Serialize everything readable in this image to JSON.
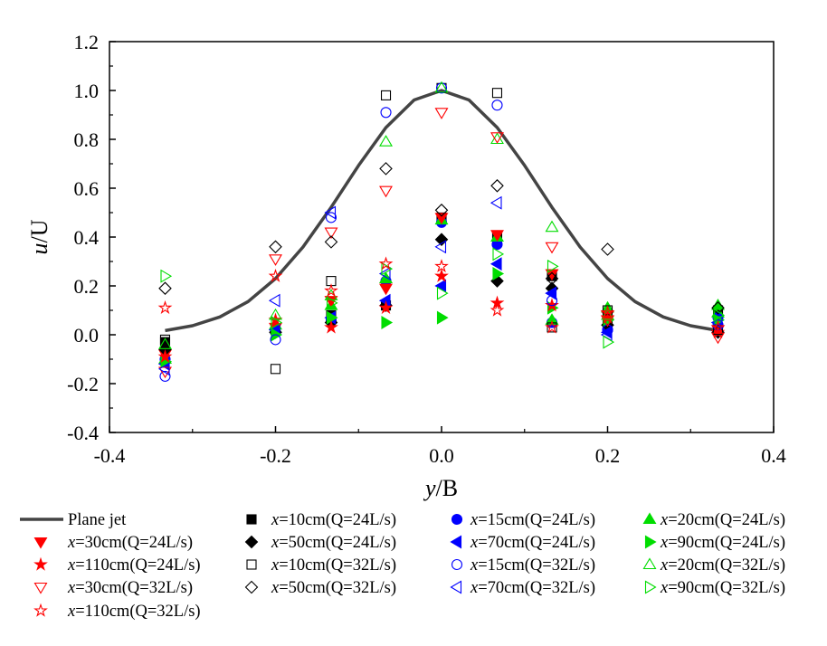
{
  "chart_data": {
    "type": "scatter",
    "xlabel": {
      "var": "y",
      "rest": "/B"
    },
    "ylabel": {
      "var": "u",
      "rest": "/U"
    },
    "xlim": [
      -0.4,
      0.4
    ],
    "ylim": [
      -0.4,
      1.2
    ],
    "xticks": [
      "-0.4",
      "-0.2",
      "0.0",
      "0.2",
      "0.4"
    ],
    "xtick_values": [
      -0.4,
      -0.2,
      0.0,
      0.2,
      0.4
    ],
    "yticks": [
      "-0.4",
      "-0.2",
      "0.0",
      "0.2",
      "0.4",
      "0.6",
      "0.8",
      "1.0",
      "1.2"
    ],
    "ytick_values": [
      -0.4,
      -0.2,
      0.0,
      0.2,
      0.4,
      0.6,
      0.8,
      1.0,
      1.2
    ],
    "grid": false,
    "legend_placement": "bottom",
    "x": [
      -0.333,
      -0.2,
      -0.133,
      -0.067,
      0.0,
      0.067,
      0.133,
      0.2,
      0.333
    ],
    "curve": {
      "name": "Plane jet",
      "color": "#444444",
      "x": [
        -0.333,
        -0.3,
        -0.267,
        -0.233,
        -0.2,
        -0.167,
        -0.133,
        -0.1,
        -0.067,
        -0.033,
        0,
        0.033,
        0.067,
        0.1,
        0.133,
        0.167,
        0.2,
        0.233,
        0.267,
        0.3,
        0.333
      ],
      "y": [
        0.017,
        0.037,
        0.073,
        0.136,
        0.23,
        0.359,
        0.522,
        0.693,
        0.848,
        0.961,
        1.0,
        0.961,
        0.848,
        0.693,
        0.522,
        0.359,
        0.23,
        0.136,
        0.073,
        0.037,
        0.017
      ]
    },
    "series": [
      {
        "name": "x=10cm(Q=24L/s)",
        "marker": "square",
        "filled": true,
        "color": "#000000",
        "values": [
          -0.03,
          0.02,
          0.08,
          0.12,
          0.48,
          0.4,
          0.24,
          0.04,
          0.1
        ]
      },
      {
        "name": "x=15cm(Q=24L/s)",
        "marker": "circle",
        "filled": true,
        "color": "#0000ff",
        "values": [
          -0.1,
          0.01,
          0.06,
          0.22,
          0.46,
          0.37,
          0.05,
          0.02,
          0.07
        ]
      },
      {
        "name": "x=20cm(Q=24L/s)",
        "marker": "triangle-up",
        "filled": true,
        "color": "#00dd00",
        "values": [
          -0.1,
          0.04,
          0.12,
          0.23,
          0.47,
          0.4,
          0.06,
          0.11,
          0.12
        ]
      },
      {
        "name": "x=30cm(Q=24L/s)",
        "marker": "triangle-down",
        "filled": true,
        "color": "#ff0000",
        "values": [
          -0.08,
          0.03,
          0.14,
          0.19,
          0.48,
          0.41,
          0.25,
          0.08,
          0.02
        ]
      },
      {
        "name": "x=50cm(Q=24L/s)",
        "marker": "diamond",
        "filled": true,
        "color": "#000000",
        "values": [
          -0.06,
          0.01,
          0.05,
          0.12,
          0.39,
          0.22,
          0.19,
          0.04,
          0.01
        ]
      },
      {
        "name": "x=70cm(Q=24L/s)",
        "marker": "triangle-left",
        "filled": true,
        "color": "#0000ff",
        "values": [
          -0.12,
          0.02,
          0.07,
          0.14,
          0.2,
          0.29,
          0.17,
          0.01,
          0.05
        ]
      },
      {
        "name": "x=90cm(Q=24L/s)",
        "marker": "triangle-right",
        "filled": true,
        "color": "#00dd00",
        "values": [
          -0.11,
          0.0,
          0.07,
          0.05,
          0.07,
          0.25,
          0.11,
          0.06,
          0.06
        ]
      },
      {
        "name": "x=110cm(Q=24L/s)",
        "marker": "star",
        "filled": true,
        "color": "#ff0000",
        "values": [
          -0.09,
          0.06,
          0.03,
          0.11,
          0.24,
          0.13,
          0.12,
          0.07,
          0.01
        ]
      },
      {
        "name": "x=10cm(Q=32L/s)",
        "marker": "square",
        "filled": false,
        "color": "#000000",
        "values": [
          -0.02,
          -0.14,
          0.22,
          0.98,
          1.01,
          0.99,
          0.03,
          0.1,
          0.02
        ]
      },
      {
        "name": "x=15cm(Q=32L/s)",
        "marker": "circle",
        "filled": false,
        "color": "#0000ff",
        "values": [
          -0.17,
          -0.02,
          0.48,
          0.91,
          1.01,
          0.94,
          0.14,
          0.02,
          0.04
        ]
      },
      {
        "name": "x=20cm(Q=32L/s)",
        "marker": "triangle-up",
        "filled": false,
        "color": "#00dd00",
        "values": [
          -0.04,
          0.08,
          0.16,
          0.79,
          1.01,
          0.8,
          0.44,
          0.08,
          0.09
        ]
      },
      {
        "name": "x=30cm(Q=32L/s)",
        "marker": "triangle-down",
        "filled": false,
        "color": "#ff0000",
        "values": [
          -0.15,
          0.31,
          0.42,
          0.59,
          0.91,
          0.81,
          0.36,
          0.06,
          -0.01
        ]
      },
      {
        "name": "x=50cm(Q=32L/s)",
        "marker": "diamond",
        "filled": false,
        "color": "#000000",
        "values": [
          0.19,
          0.36,
          0.38,
          0.68,
          0.51,
          0.61,
          0.23,
          0.35,
          0.11
        ]
      },
      {
        "name": "x=70cm(Q=32L/s)",
        "marker": "triangle-left",
        "filled": false,
        "color": "#0000ff",
        "values": [
          -0.14,
          0.14,
          0.5,
          0.25,
          0.36,
          0.54,
          0.17,
          0.0,
          0.05
        ]
      },
      {
        "name": "x=90cm(Q=32L/s)",
        "marker": "triangle-right",
        "filled": false,
        "color": "#00dd00",
        "values": [
          0.24,
          0.05,
          0.13,
          0.27,
          0.17,
          0.33,
          0.28,
          -0.03,
          0.08
        ]
      },
      {
        "name": "x=110cm(Q=32L/s)",
        "marker": "star",
        "filled": false,
        "color": "#ff0000",
        "values": [
          0.11,
          0.24,
          0.18,
          0.29,
          0.28,
          0.1,
          0.03,
          0.09,
          0.03
        ]
      }
    ]
  }
}
